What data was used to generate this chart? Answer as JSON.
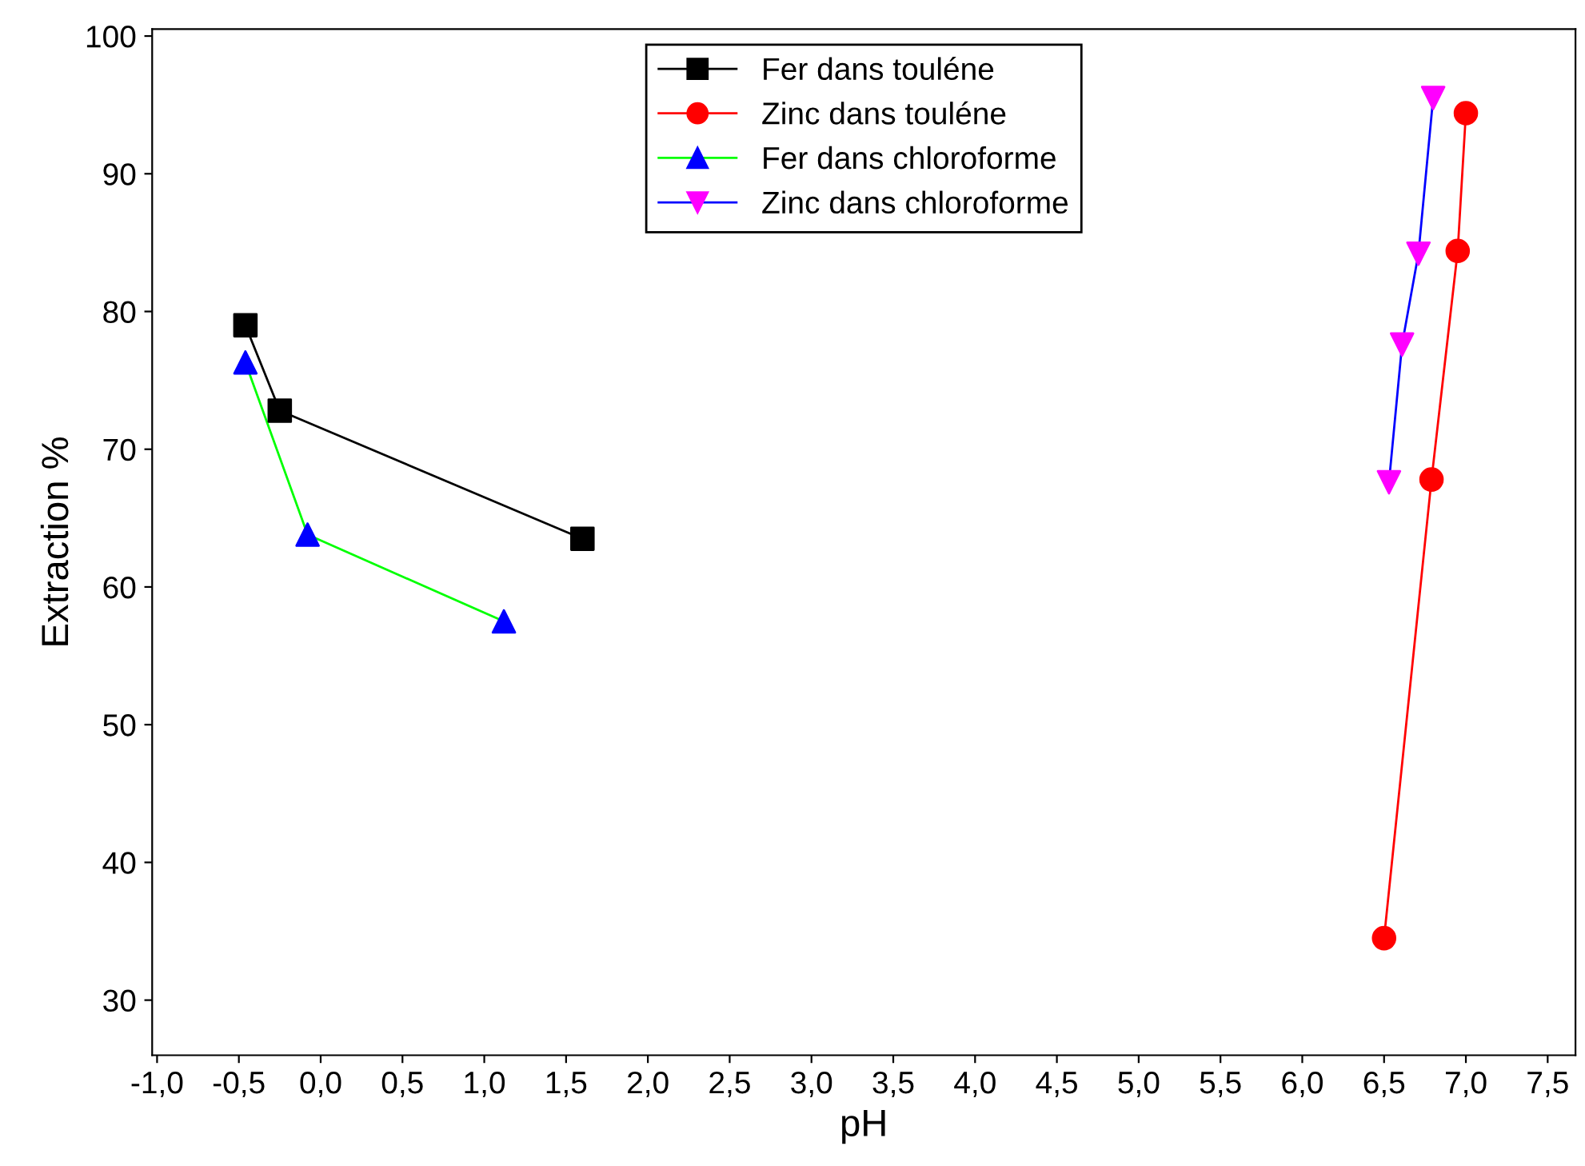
{
  "chart_data": {
    "type": "line",
    "xlabel": "pH",
    "ylabel": "Extraction %",
    "xlim": [
      -1.03,
      7.67
    ],
    "ylim": [
      26,
      100.5
    ],
    "xticks": [
      {
        "value": -1.0,
        "label": "-1,0"
      },
      {
        "value": -0.5,
        "label": "-0,5"
      },
      {
        "value": 0.0,
        "label": "0,0"
      },
      {
        "value": 0.5,
        "label": "0,5"
      },
      {
        "value": 1.0,
        "label": "1,0"
      },
      {
        "value": 1.5,
        "label": "1,5"
      },
      {
        "value": 2.0,
        "label": "2,0"
      },
      {
        "value": 2.5,
        "label": "2,5"
      },
      {
        "value": 3.0,
        "label": "3,0"
      },
      {
        "value": 3.5,
        "label": "3,5"
      },
      {
        "value": 4.0,
        "label": "4,0"
      },
      {
        "value": 4.5,
        "label": "4,5"
      },
      {
        "value": 5.0,
        "label": "5,0"
      },
      {
        "value": 5.5,
        "label": "5,5"
      },
      {
        "value": 6.0,
        "label": "6,0"
      },
      {
        "value": 6.5,
        "label": "6,5"
      },
      {
        "value": 7.0,
        "label": "7,0"
      },
      {
        "value": 7.5,
        "label": "7,5"
      }
    ],
    "yticks": [
      30,
      40,
      50,
      60,
      70,
      80,
      90,
      100
    ],
    "grid": false,
    "legend": "top",
    "line_style": "solid",
    "series": [
      {
        "name": "Fer dans touléne",
        "color": "#000000",
        "marker": "square",
        "x": [
          -0.46,
          -0.25,
          1.6
        ],
        "values": [
          79,
          72.8,
          63.5
        ]
      },
      {
        "name": "Zinc dans touléne",
        "color": "#ff0000",
        "marker": "circle",
        "x": [
          6.5,
          6.79,
          6.95,
          7.0
        ],
        "values": [
          34.5,
          67.8,
          84.4,
          94.4
        ]
      },
      {
        "name": "Fer dans chloroforme",
        "color": "#00ff00",
        "colors": [
          "#0000ff",
          "#0000ff",
          "#0000ff"
        ],
        "marker": "triangle",
        "x": [
          -0.46,
          -0.08,
          1.12
        ],
        "values": [
          76.3,
          63.8,
          57.5
        ]
      },
      {
        "name": "Zinc dans chloroforme",
        "color": "#0000ff",
        "colors": [
          "#ff00ff",
          "#ff00ff",
          "#ff00ff",
          "#ff00ff"
        ],
        "marker": "triangle_down",
        "x": [
          6.53,
          6.61,
          6.71,
          6.8
        ],
        "values": [
          67.6,
          77.6,
          84.2,
          95.5
        ]
      }
    ]
  }
}
